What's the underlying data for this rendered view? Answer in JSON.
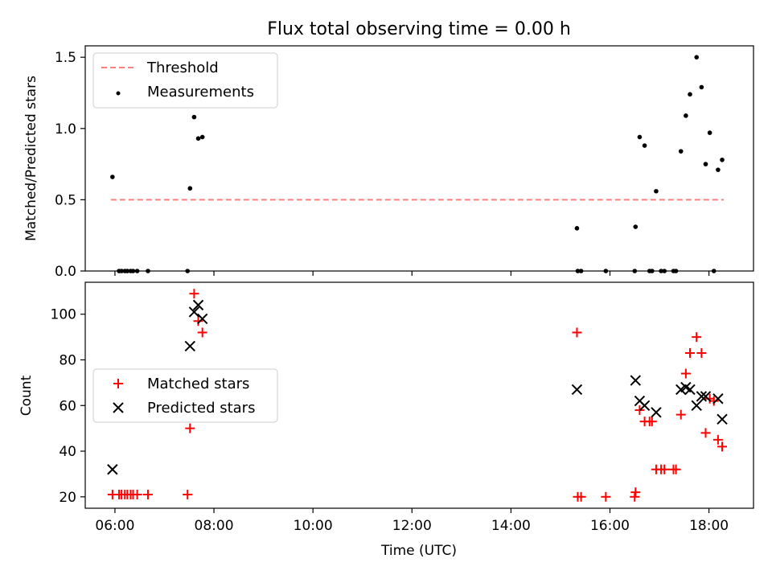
{
  "figure": {
    "title": "Flux total observing time = 0.00 h"
  },
  "chart_data": [
    {
      "type": "scatter",
      "panel": "top",
      "ylabel": "Matched/Predicted stars",
      "xlabel": "",
      "xlim": [
        "05:24",
        "18:54"
      ],
      "ylim": [
        0,
        1.58
      ],
      "yticks": [
        0,
        0.5,
        1.0,
        1.5
      ],
      "ytick_labels": [
        "0.0",
        "0.5",
        "1.0",
        "1.5"
      ],
      "grid": false,
      "legend_position": "upper-left",
      "series": [
        {
          "name": "Threshold",
          "kind": "line",
          "style": "dashed",
          "color": "#ff7f7f",
          "x": [
            "05:55",
            "18:18"
          ],
          "y": [
            0.5,
            0.5
          ]
        },
        {
          "name": "Measurements",
          "kind": "points",
          "marker": "dot",
          "color": "#000000",
          "x": [
            "05:57",
            "06:05",
            "06:08",
            "06:12",
            "06:15",
            "06:19",
            "06:22",
            "06:27",
            "06:40",
            "07:28",
            "07:31",
            "07:36",
            "07:41",
            "07:46",
            "15:20",
            "15:21",
            "15:25",
            "15:55",
            "16:30",
            "16:31",
            "16:36",
            "16:42",
            "16:48",
            "16:51",
            "16:56",
            "17:02",
            "17:06",
            "17:17",
            "17:20",
            "17:26",
            "17:32",
            "17:37",
            "17:45",
            "17:51",
            "17:56",
            "18:01",
            "18:06",
            "18:11",
            "18:16"
          ],
          "y": [
            0.66,
            0.0,
            0.0,
            0.0,
            0.0,
            0.0,
            0.0,
            0.0,
            0.0,
            0.0,
            0.58,
            1.08,
            0.93,
            0.94,
            0.3,
            0.0,
            0.0,
            0.0,
            0.0,
            0.31,
            0.94,
            0.88,
            0.0,
            0.0,
            0.56,
            0.0,
            0.0,
            0.0,
            0.0,
            0.84,
            1.09,
            1.24,
            1.5,
            1.29,
            0.75,
            0.97,
            0.0,
            0.71,
            0.78
          ]
        }
      ]
    },
    {
      "type": "scatter",
      "panel": "bottom",
      "ylabel": "Count",
      "xlabel": "Time (UTC)",
      "xlim": [
        "05:24",
        "18:54"
      ],
      "xtick_labels": [
        "06:00",
        "08:00",
        "10:00",
        "12:00",
        "14:00",
        "16:00",
        "18:00"
      ],
      "ylim": [
        15,
        114
      ],
      "yticks": [
        20,
        40,
        60,
        80,
        100
      ],
      "grid": false,
      "legend_position": "center-left",
      "series": [
        {
          "name": "Matched stars",
          "marker": "plus",
          "color": "#ff0000",
          "x": [
            "05:57",
            "06:05",
            "06:08",
            "06:12",
            "06:15",
            "06:19",
            "06:22",
            "06:27",
            "06:40",
            "07:28",
            "07:31",
            "07:36",
            "07:41",
            "07:46",
            "15:20",
            "15:21",
            "15:25",
            "15:55",
            "16:30",
            "16:31",
            "16:36",
            "16:42",
            "16:48",
            "16:51",
            "16:56",
            "17:02",
            "17:06",
            "17:17",
            "17:20",
            "17:26",
            "17:32",
            "17:37",
            "17:45",
            "17:51",
            "17:56",
            "18:01",
            "18:06",
            "18:11",
            "18:16"
          ],
          "y": [
            21,
            21,
            21,
            21,
            21,
            21,
            21,
            21,
            21,
            21,
            50,
            109,
            97,
            92,
            92,
            20,
            20,
            20,
            20,
            22,
            58,
            53,
            53,
            53,
            32,
            32,
            32,
            32,
            32,
            56,
            74,
            83,
            90,
            83,
            48,
            63,
            62,
            45,
            42
          ]
        },
        {
          "name": "Predicted stars",
          "marker": "x",
          "color": "#000000",
          "x": [
            "05:57",
            "07:31",
            "07:36",
            "07:41",
            "07:46",
            "15:20",
            "16:31",
            "16:36",
            "16:42",
            "16:56",
            "17:26",
            "17:32",
            "17:37",
            "17:45",
            "17:51",
            "17:56",
            "18:11",
            "18:16"
          ],
          "y": [
            32,
            86,
            101,
            104,
            98,
            67,
            71,
            62,
            60,
            57,
            67,
            68,
            67,
            60,
            64,
            64,
            63,
            54
          ]
        }
      ]
    }
  ]
}
